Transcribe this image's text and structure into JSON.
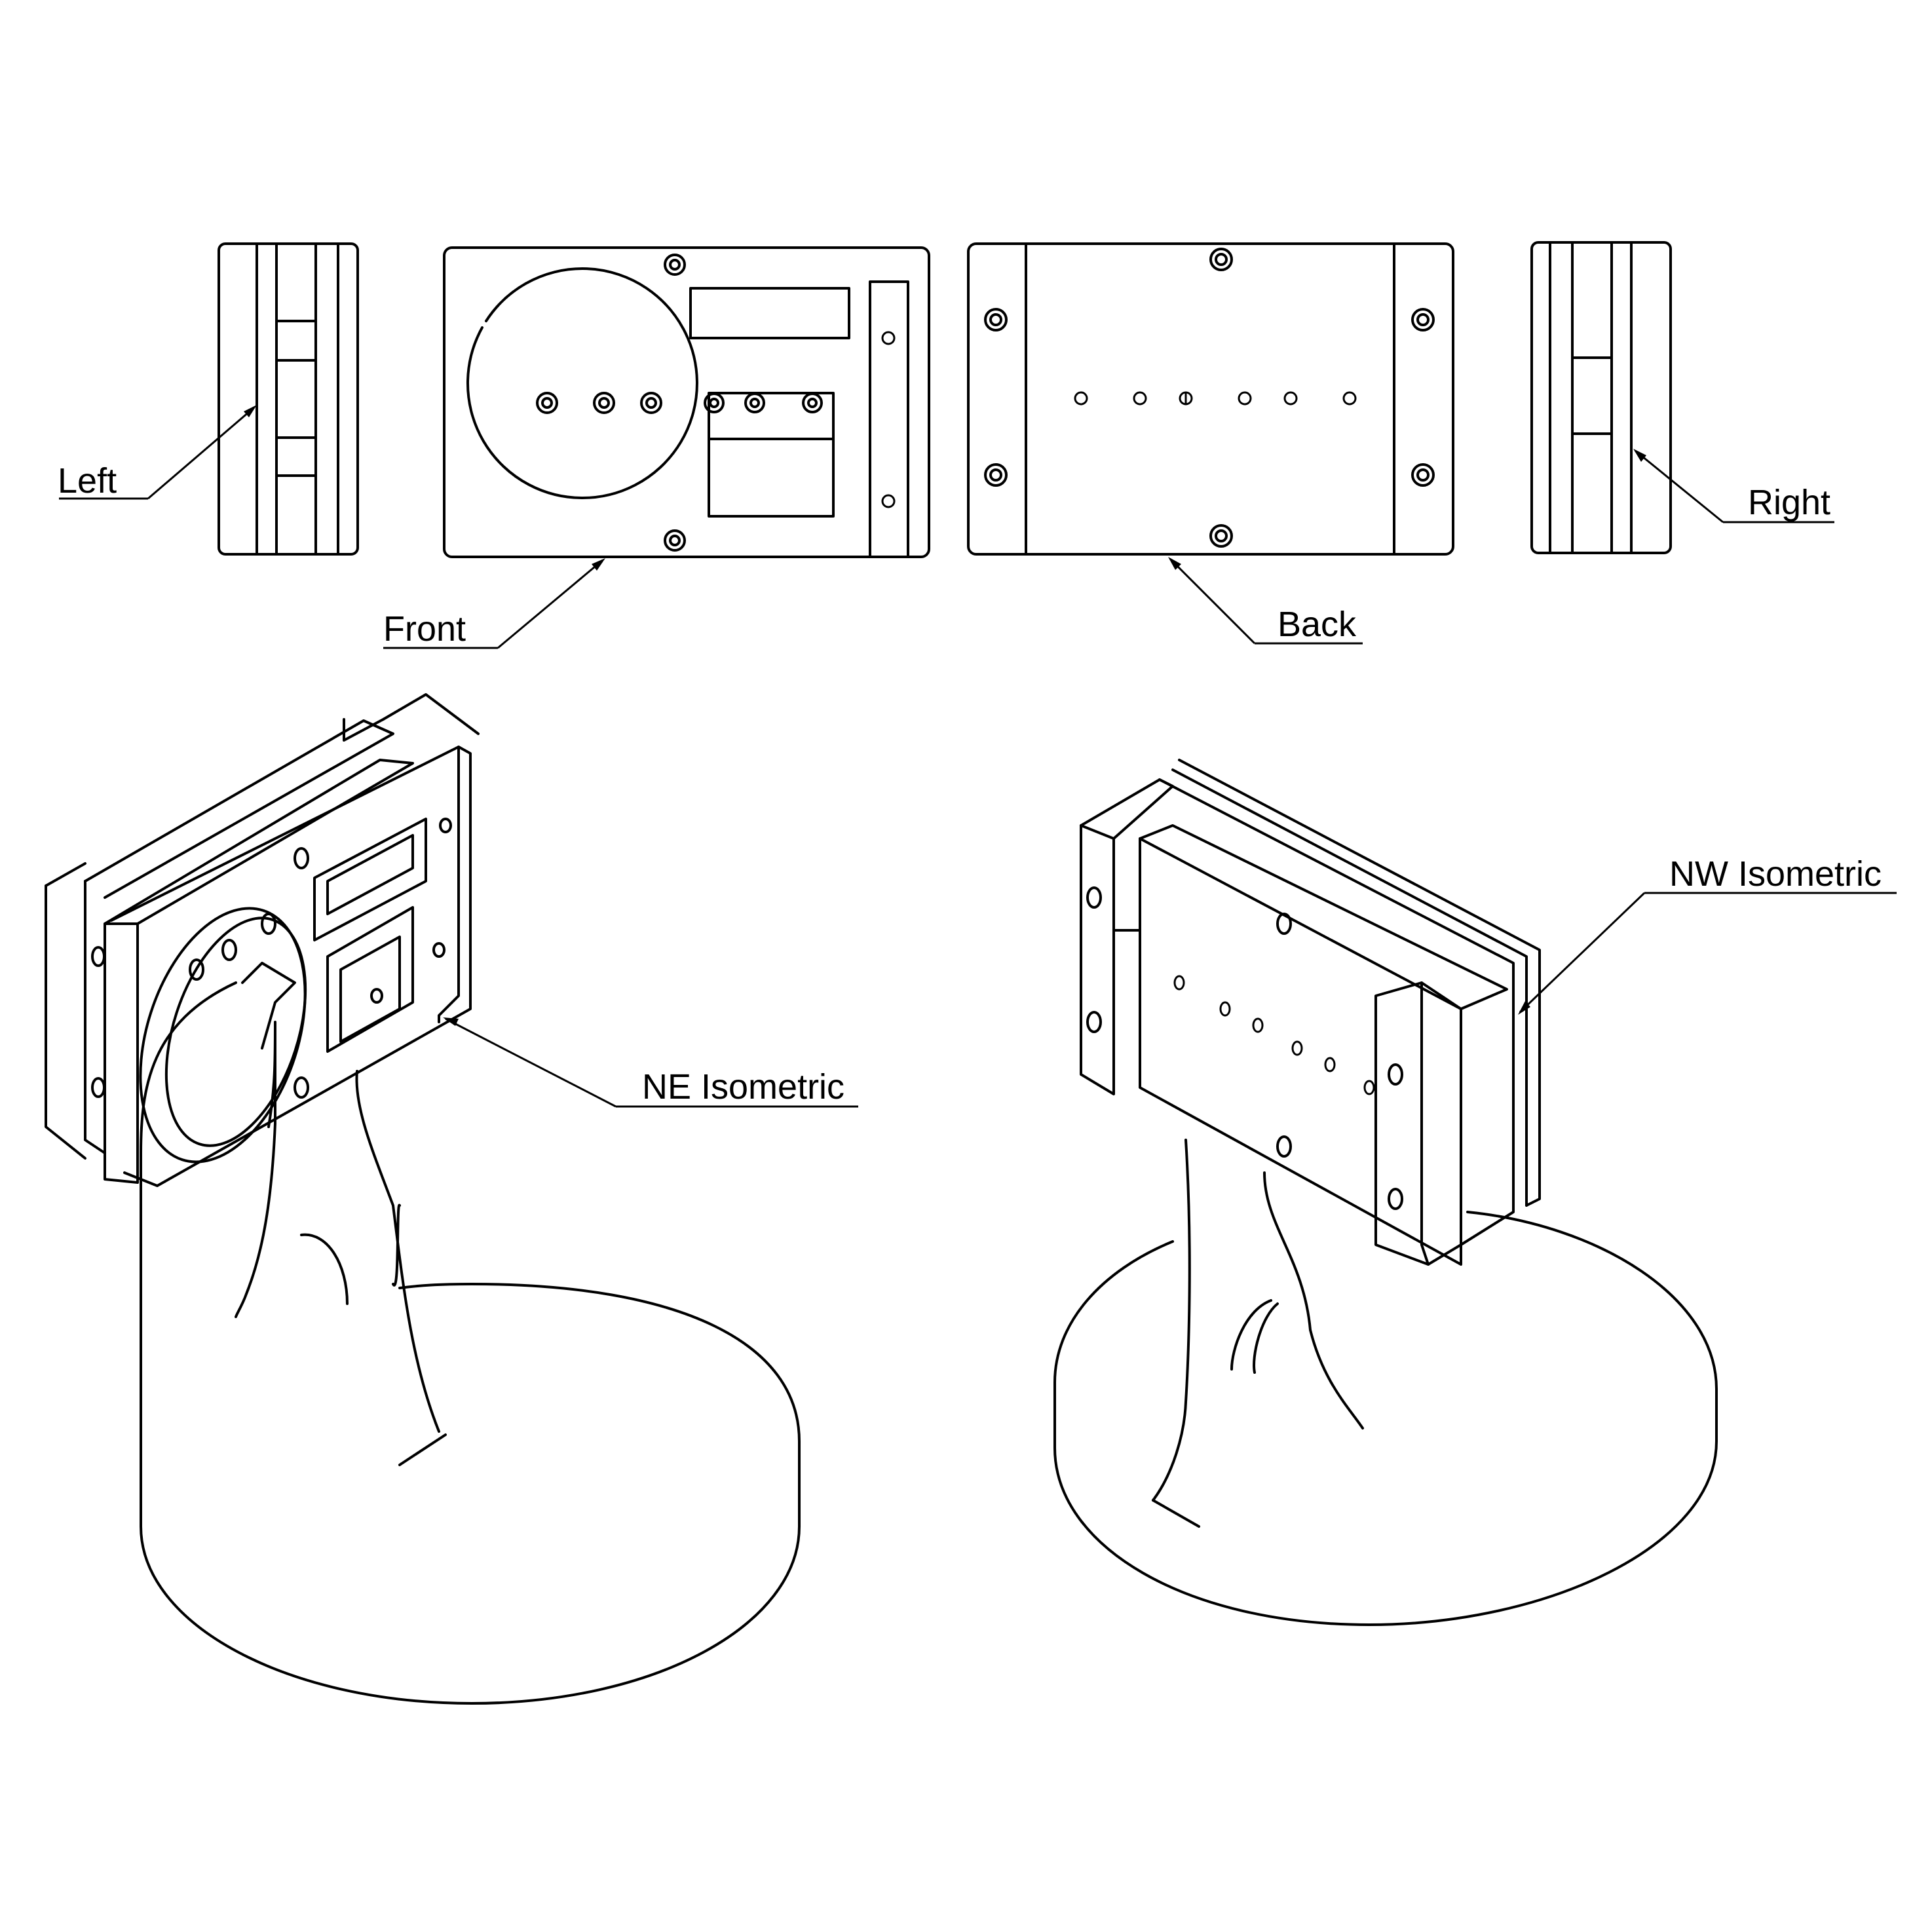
{
  "labels": {
    "left": "Left",
    "front": "Front",
    "back": "Back",
    "right": "Right",
    "ne_iso": "NE Isometric",
    "nw_iso": "NW Isometric"
  }
}
